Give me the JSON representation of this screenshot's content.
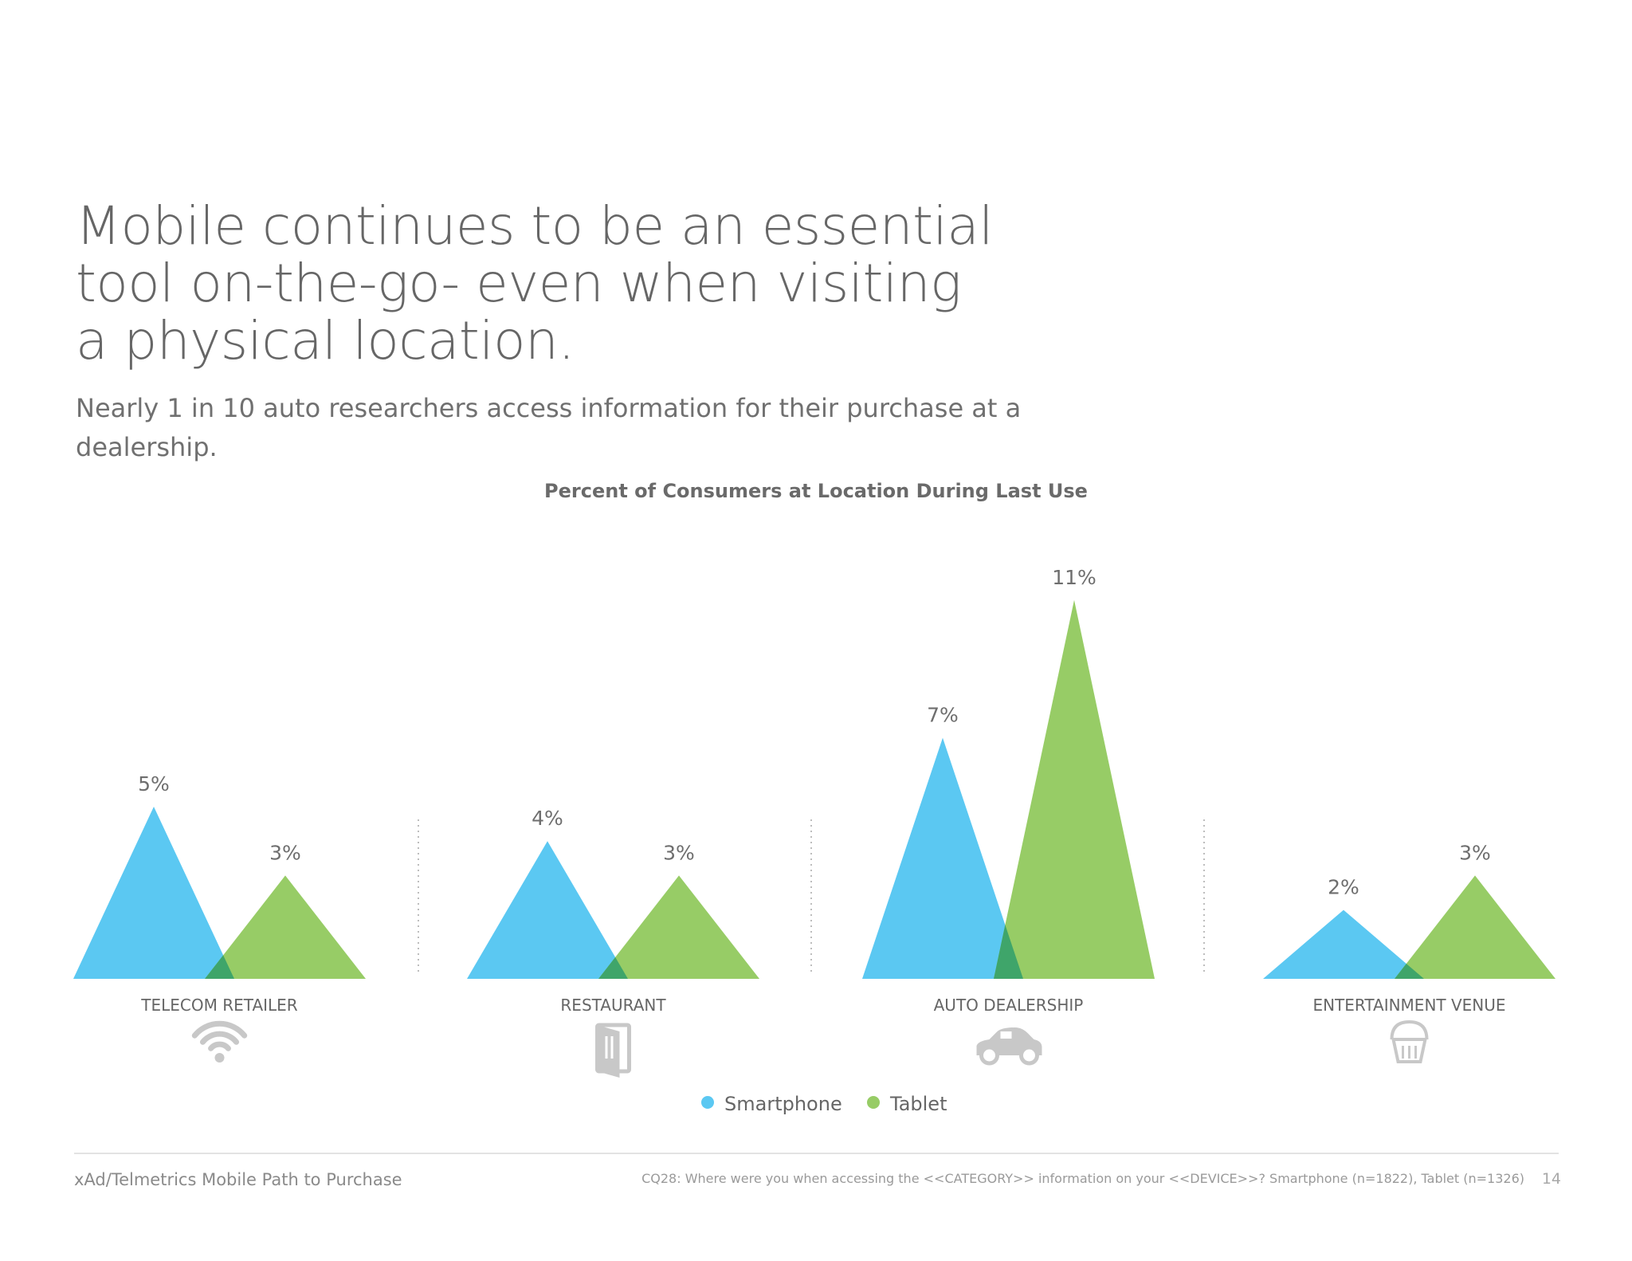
{
  "headline": {
    "line1": "Mobile continues to be an essential",
    "line2": "tool  on-the-go- even when visiting",
    "line3": "a physical location."
  },
  "subhead": "Nearly 1 in 10 auto researchers access information for their purchase at a dealership.",
  "chart_data": {
    "type": "bar",
    "title": "Percent of Consumers at Location During Last Use",
    "unit": "%",
    "categories": [
      "TELECOM RETAILER",
      "RESTAURANT",
      "AUTO DEALERSHIP",
      "ENTERTAINMENT VENUE"
    ],
    "category_icons": [
      "wifi-icon",
      "fork-knife-door-icon",
      "car-icon",
      "popcorn-icon"
    ],
    "series": [
      {
        "name": "Smartphone",
        "color": "#5bc8f2",
        "values": [
          5,
          4,
          7,
          2
        ],
        "labels": [
          "5%",
          "4%",
          "7%",
          "2%"
        ]
      },
      {
        "name": "Tablet",
        "color": "#97cc66",
        "values": [
          3,
          3,
          11,
          3
        ],
        "labels": [
          "3%",
          "3%",
          "11%",
          "3%"
        ]
      }
    ],
    "overlap_color": "#3fa56a",
    "ylim": [
      0,
      11
    ],
    "legend_position": "bottom"
  },
  "footer": {
    "source": "xAd/Telmetrics Mobile Path to Purchase",
    "note": "CQ28: Where were you when accessing the <<CATEGORY>> information on your <<DEVICE>>? Smartphone (n=1822), Tablet (n=1326)",
    "page_number": "14"
  }
}
